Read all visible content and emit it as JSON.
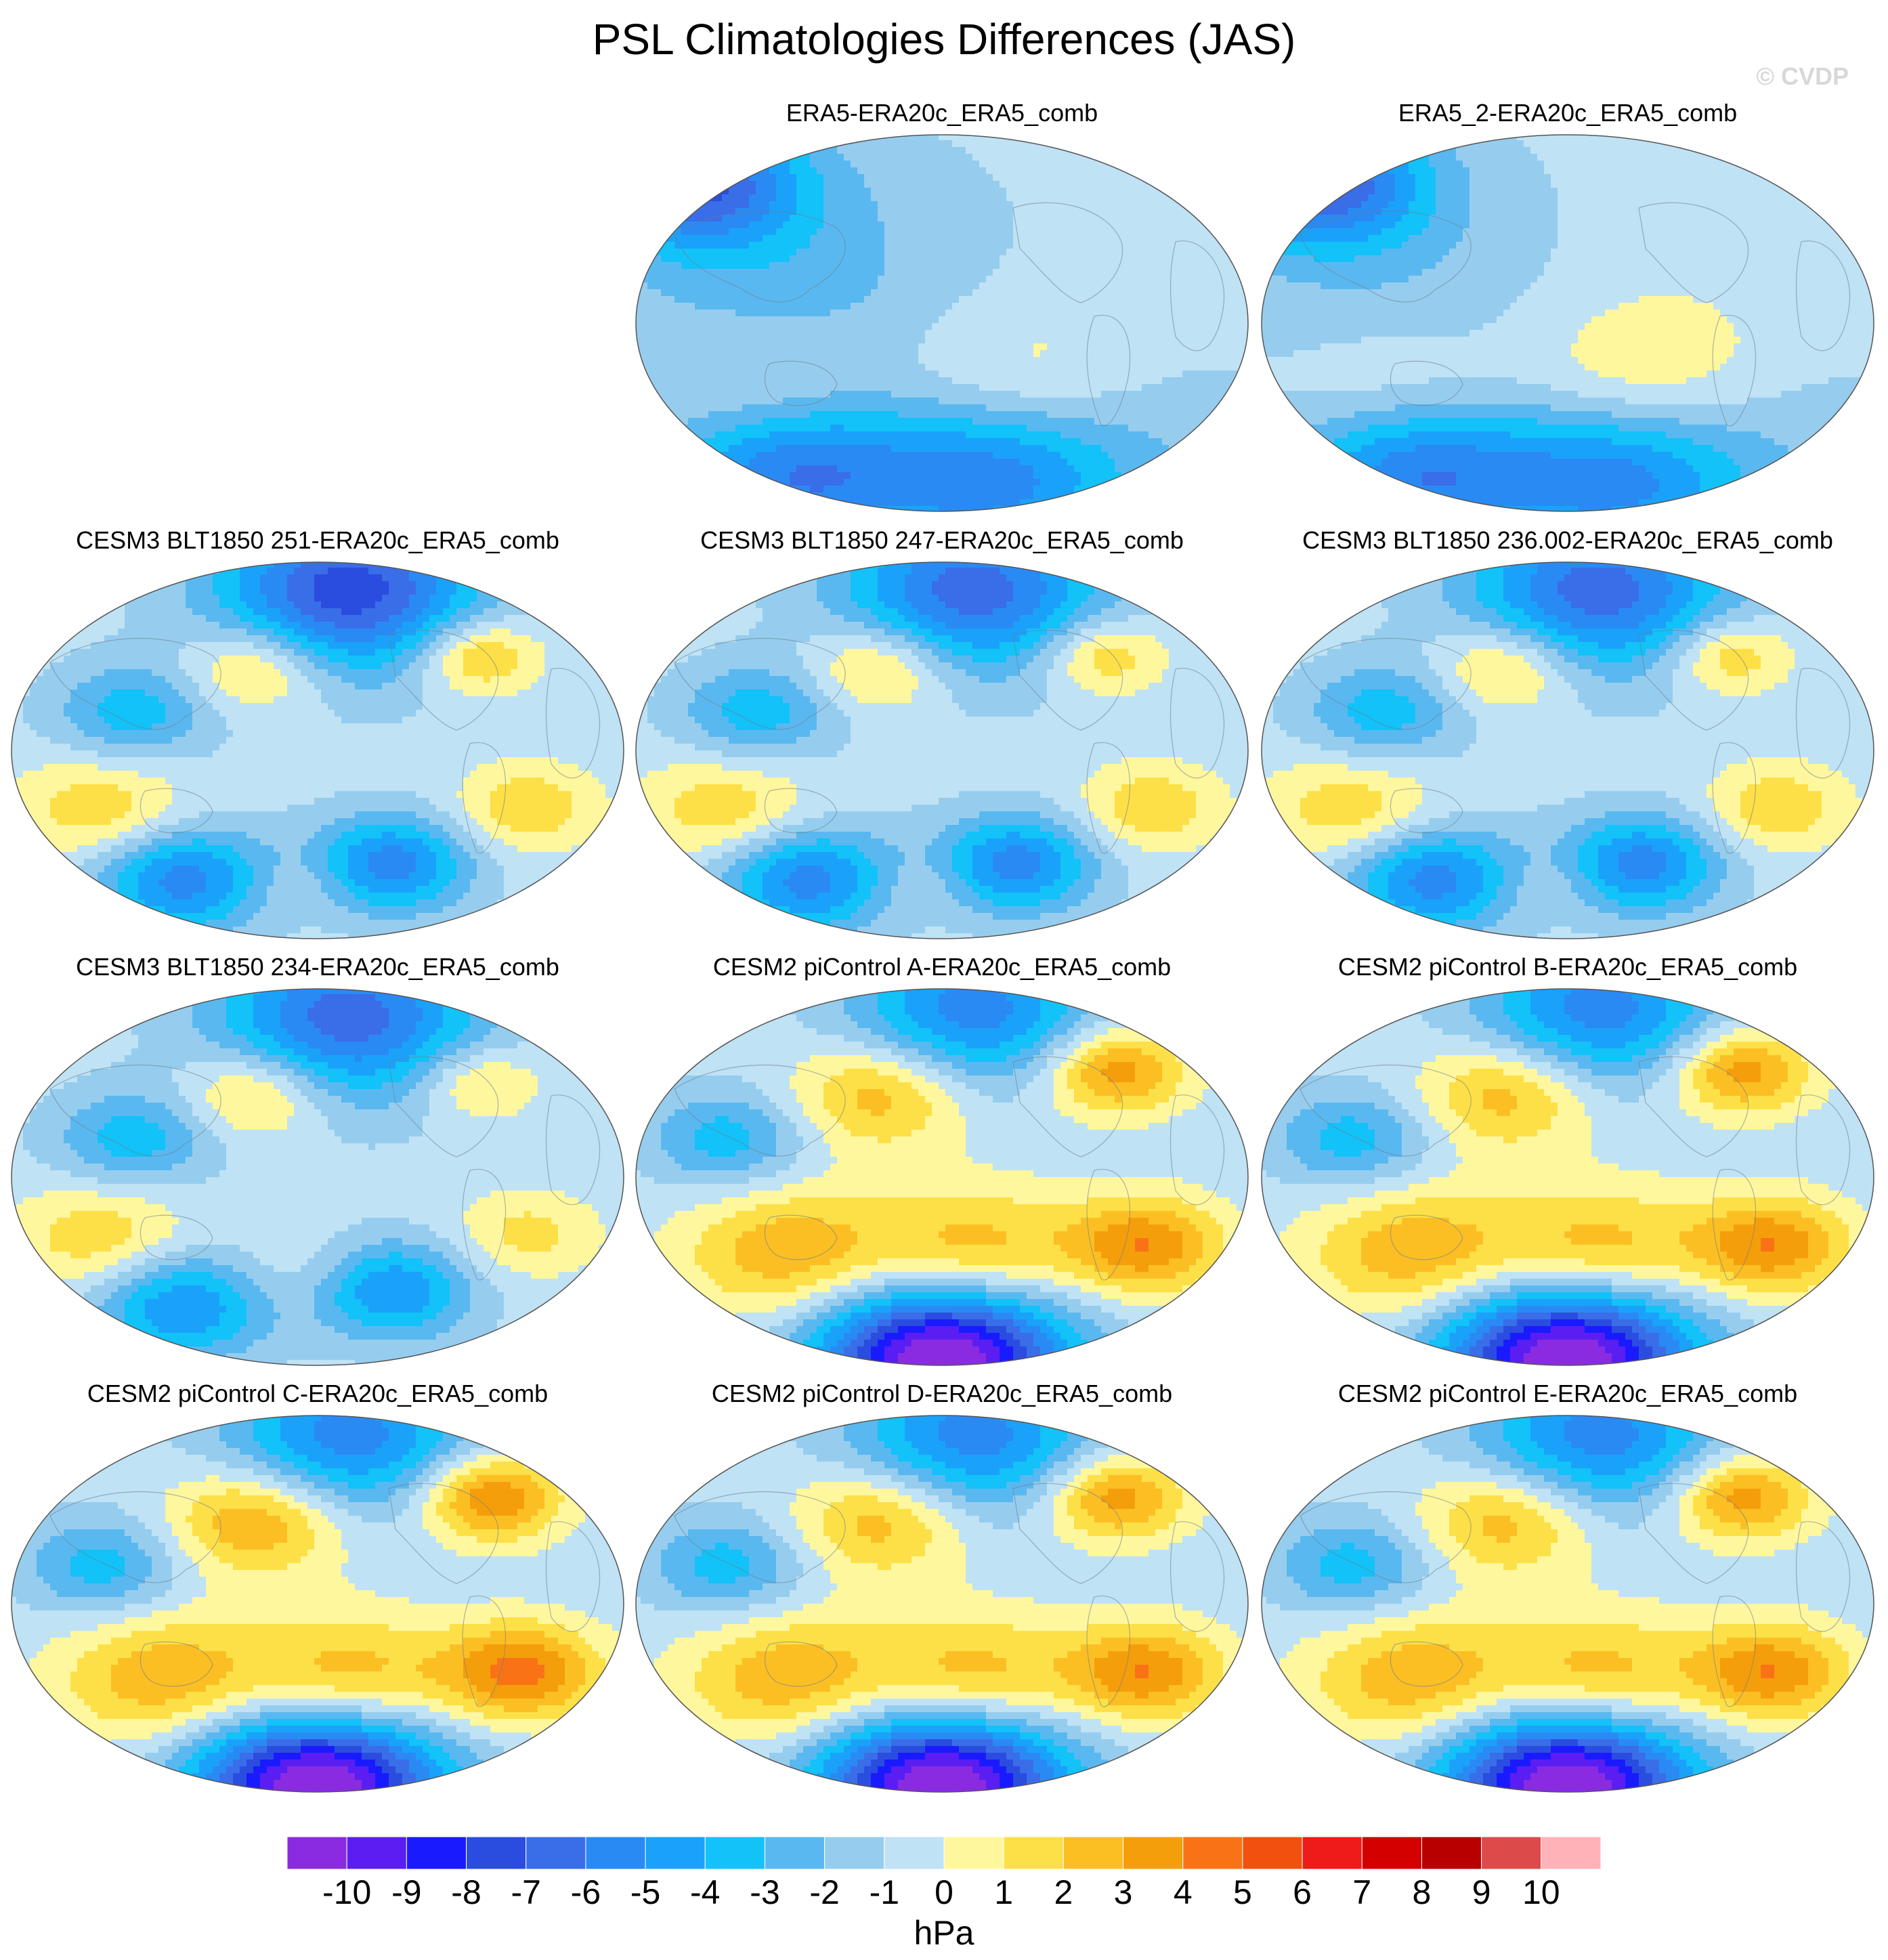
{
  "title": "PSL Climatologies Differences (JAS)",
  "watermark": "© CVDP",
  "chart_data": {
    "type": "heatmap",
    "title": "PSL Climatologies Differences (JAS)",
    "projection": "Robinson",
    "units": "hPa",
    "panels": [
      {
        "title": "ERA5-ERA20c_ERA5_comb",
        "anoms": [
          [
            0.1,
            0.13,
            -6,
            0.12
          ],
          [
            0.3,
            0.4,
            -2,
            0.25
          ],
          [
            0.85,
            0.8,
            -1,
            0.18
          ],
          [
            0.55,
            0.43,
            0.5,
            0.2
          ],
          [
            0.62,
            0.68,
            2,
            0.15
          ],
          [
            0.22,
            0.68,
            1.5,
            0.12
          ],
          [
            0.58,
            0.9,
            -5,
            0.15
          ],
          [
            0.25,
            0.9,
            -5,
            0.14
          ]
        ]
      },
      {
        "title": "ERA5_2-ERA20c_ERA5_comb",
        "anoms": [
          [
            0.1,
            0.13,
            -6,
            0.12
          ],
          [
            0.3,
            0.4,
            -1.5,
            0.25
          ],
          [
            0.85,
            0.8,
            -1,
            0.18
          ],
          [
            0.55,
            0.43,
            0.8,
            0.22
          ],
          [
            0.62,
            0.68,
            2.2,
            0.15
          ],
          [
            0.22,
            0.68,
            1.5,
            0.12
          ],
          [
            0.58,
            0.9,
            -5,
            0.15
          ],
          [
            0.25,
            0.9,
            -5,
            0.14
          ]
        ]
      },
      {
        "title": "CESM3 BLT1850 251-ERA20c_ERA5_comb",
        "anoms": [
          [
            0.55,
            0.08,
            -7,
            0.15
          ],
          [
            0.4,
            0.28,
            3,
            0.08
          ],
          [
            0.76,
            0.25,
            3.5,
            0.07
          ],
          [
            0.15,
            0.66,
            2.5,
            0.1
          ],
          [
            0.84,
            0.65,
            2.5,
            0.08
          ],
          [
            0.28,
            0.84,
            -5,
            0.1
          ],
          [
            0.62,
            0.8,
            -5,
            0.09
          ],
          [
            0.2,
            0.4,
            -3,
            0.09
          ],
          [
            0.47,
            0.85,
            1,
            0.06
          ]
        ]
      },
      {
        "title": "CESM3 BLT1850 247-ERA20c_ERA5_comb",
        "anoms": [
          [
            0.55,
            0.08,
            -6,
            0.15
          ],
          [
            0.4,
            0.28,
            3,
            0.08
          ],
          [
            0.76,
            0.25,
            3,
            0.07
          ],
          [
            0.15,
            0.66,
            2.5,
            0.1
          ],
          [
            0.84,
            0.65,
            2.5,
            0.08
          ],
          [
            0.28,
            0.84,
            -5,
            0.1
          ],
          [
            0.62,
            0.8,
            -5,
            0.09
          ],
          [
            0.2,
            0.4,
            -3,
            0.09
          ],
          [
            0.47,
            0.85,
            1,
            0.06
          ]
        ]
      },
      {
        "title": "CESM3 BLT1850 236.002-ERA20c_ERA5_comb",
        "anoms": [
          [
            0.55,
            0.08,
            -6,
            0.15
          ],
          [
            0.4,
            0.28,
            3,
            0.08
          ],
          [
            0.76,
            0.25,
            3,
            0.07
          ],
          [
            0.15,
            0.66,
            2.5,
            0.1
          ],
          [
            0.84,
            0.65,
            2.5,
            0.08
          ],
          [
            0.28,
            0.84,
            -5,
            0.1
          ],
          [
            0.62,
            0.8,
            -5,
            0.09
          ],
          [
            0.2,
            0.4,
            -3,
            0.09
          ],
          [
            0.47,
            0.85,
            1,
            0.06
          ]
        ]
      },
      {
        "title": "CESM3 BLT1850 234-ERA20c_ERA5_comb",
        "anoms": [
          [
            0.55,
            0.08,
            -6,
            0.15
          ],
          [
            0.4,
            0.28,
            3,
            0.08
          ],
          [
            0.76,
            0.25,
            2.5,
            0.07
          ],
          [
            0.15,
            0.66,
            2.5,
            0.1
          ],
          [
            0.84,
            0.65,
            2,
            0.08
          ],
          [
            0.28,
            0.84,
            -4.5,
            0.1
          ],
          [
            0.62,
            0.8,
            -4.5,
            0.09
          ],
          [
            0.2,
            0.4,
            -3,
            0.09
          ],
          [
            0.47,
            0.75,
            1,
            0.08
          ]
        ]
      },
      {
        "title": "CESM2 piControl A-ERA20c_ERA5_comb",
        "anoms": [
          [
            0.4,
            0.28,
            3.5,
            0.1
          ],
          [
            0.78,
            0.22,
            4.5,
            0.08
          ],
          [
            0.25,
            0.7,
            3.5,
            0.12
          ],
          [
            0.55,
            0.7,
            3.5,
            0.12
          ],
          [
            0.83,
            0.68,
            4.5,
            0.09
          ],
          [
            0.5,
            0.98,
            -11,
            0.14
          ],
          [
            0.15,
            0.4,
            -3,
            0.09
          ],
          [
            0.55,
            0.06,
            -5,
            0.14
          ]
        ]
      },
      {
        "title": "CESM2 piControl B-ERA20c_ERA5_comb",
        "anoms": [
          [
            0.4,
            0.28,
            3.5,
            0.1
          ],
          [
            0.78,
            0.22,
            4.5,
            0.08
          ],
          [
            0.25,
            0.7,
            3.5,
            0.12
          ],
          [
            0.55,
            0.7,
            3.5,
            0.12
          ],
          [
            0.83,
            0.68,
            4.5,
            0.09
          ],
          [
            0.5,
            0.98,
            -11,
            0.14
          ],
          [
            0.15,
            0.4,
            -3,
            0.09
          ],
          [
            0.55,
            0.06,
            -5,
            0.14
          ]
        ]
      },
      {
        "title": "CESM2 piControl C-ERA20c_ERA5_comb",
        "anoms": [
          [
            0.4,
            0.28,
            4,
            0.1
          ],
          [
            0.78,
            0.22,
            5,
            0.08
          ],
          [
            0.25,
            0.7,
            3.5,
            0.12
          ],
          [
            0.55,
            0.7,
            3.5,
            0.12
          ],
          [
            0.83,
            0.68,
            5,
            0.09
          ],
          [
            0.5,
            0.98,
            -11,
            0.14
          ],
          [
            0.15,
            0.4,
            -3,
            0.09
          ],
          [
            0.55,
            0.06,
            -5,
            0.14
          ]
        ]
      },
      {
        "title": "CESM2 piControl D-ERA20c_ERA5_comb",
        "anoms": [
          [
            0.4,
            0.28,
            3.5,
            0.1
          ],
          [
            0.78,
            0.22,
            4.5,
            0.08
          ],
          [
            0.25,
            0.7,
            3.5,
            0.12
          ],
          [
            0.55,
            0.7,
            3.5,
            0.12
          ],
          [
            0.83,
            0.68,
            4.5,
            0.09
          ],
          [
            0.5,
            0.98,
            -11,
            0.14
          ],
          [
            0.15,
            0.4,
            -3,
            0.09
          ],
          [
            0.55,
            0.06,
            -5,
            0.14
          ]
        ]
      },
      {
        "title": "CESM2 piControl E-ERA20c_ERA5_comb",
        "anoms": [
          [
            0.4,
            0.28,
            3.5,
            0.1
          ],
          [
            0.78,
            0.22,
            4.5,
            0.08
          ],
          [
            0.25,
            0.7,
            3.5,
            0.12
          ],
          [
            0.55,
            0.7,
            3.5,
            0.12
          ],
          [
            0.83,
            0.68,
            4.5,
            0.09
          ],
          [
            0.5,
            0.98,
            -11,
            0.14
          ],
          [
            0.15,
            0.4,
            -3,
            0.09
          ],
          [
            0.55,
            0.06,
            -5,
            0.14
          ]
        ]
      }
    ],
    "colorbar": {
      "units": "hPa",
      "labels": [
        "-10",
        "-9",
        "-8",
        "-7",
        "-6",
        "-5",
        "-4",
        "-3",
        "-2",
        "-1",
        "0",
        "1",
        "2",
        "3",
        "4",
        "5",
        "6",
        "7",
        "8",
        "9",
        "10"
      ],
      "colors": [
        "#8a2be2",
        "#5a1ef2",
        "#1a1aff",
        "#2a4de0",
        "#3a6de8",
        "#2a8af4",
        "#1aa2fa",
        "#12c2f8",
        "#5ab8f0",
        "#96cdee",
        "#bfe2f5",
        "#fff79e",
        "#fde047",
        "#fbbf24",
        "#f59e0b",
        "#f97316",
        "#f2500f",
        "#ef1a1a",
        "#d40000",
        "#b80000",
        "#dd4a4a",
        "#ffb3b8"
      ]
    }
  }
}
